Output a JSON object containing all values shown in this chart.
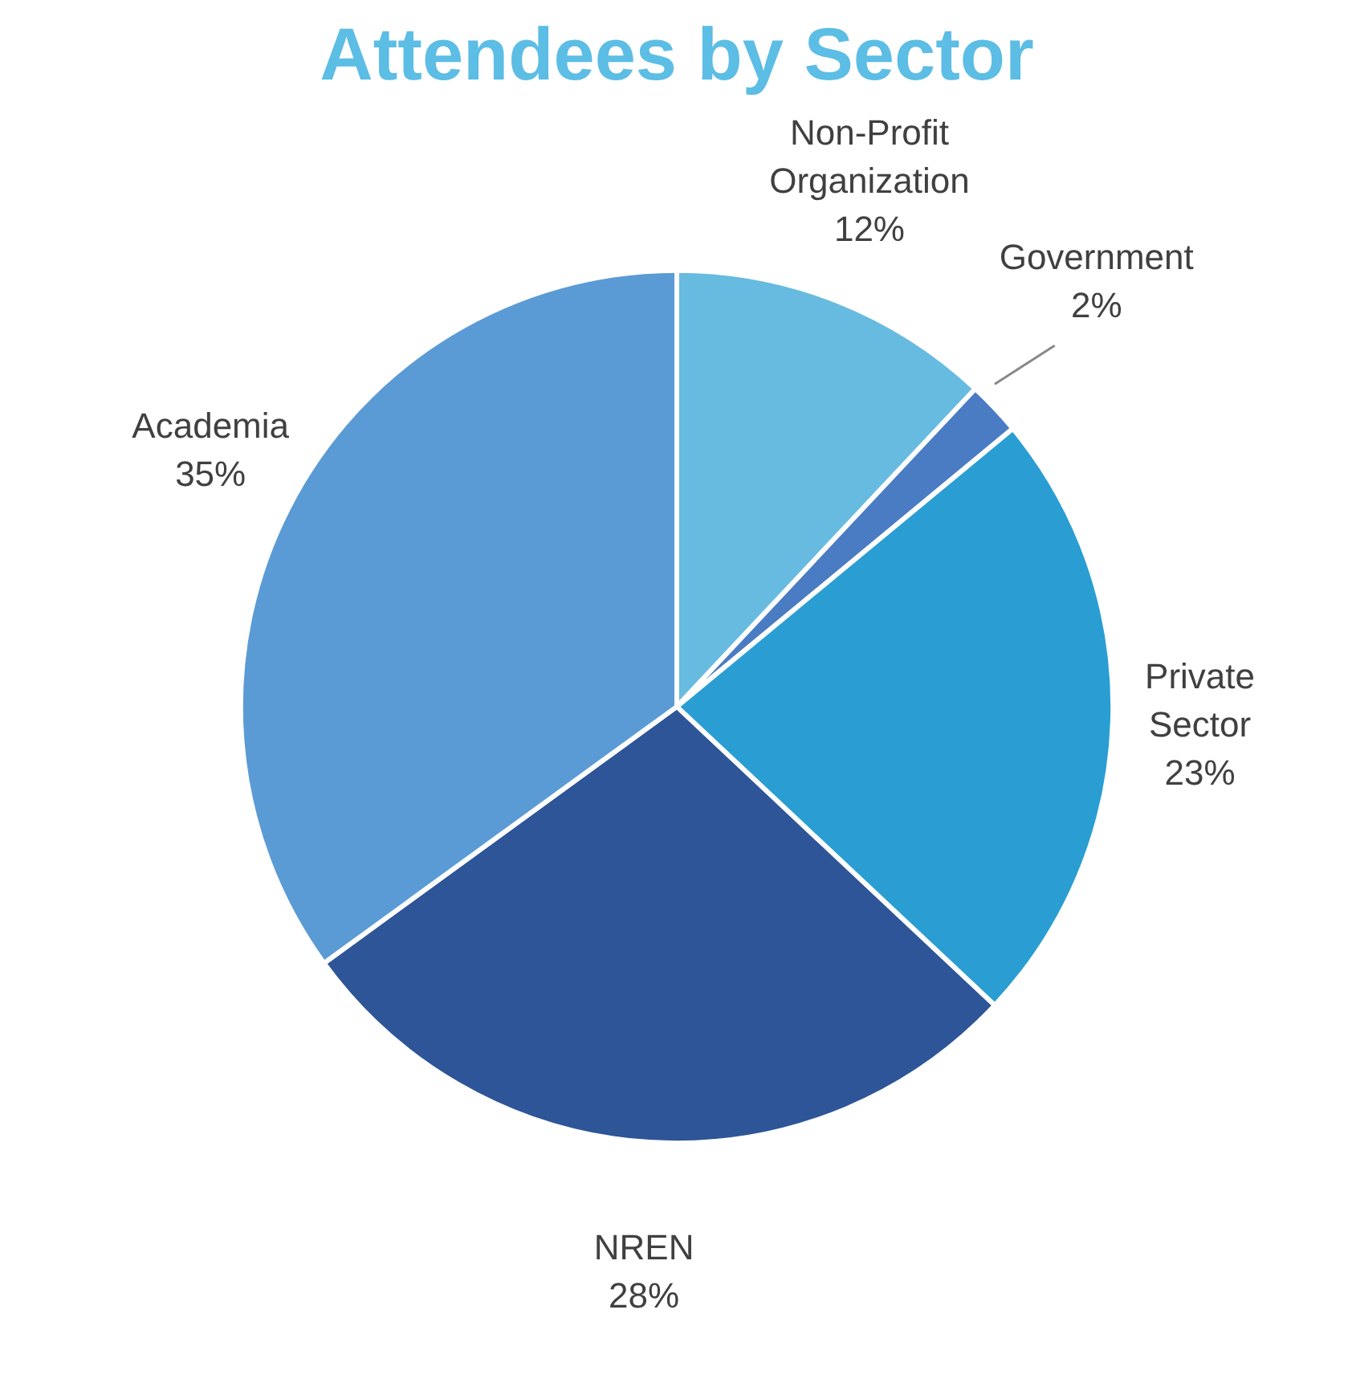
{
  "chart_data": {
    "type": "pie",
    "title": "Attendees by Sector",
    "categories": [
      "Non-Profit Organization",
      "Government",
      "Private Sector",
      "NREN",
      "Academia"
    ],
    "values": [
      12,
      2,
      23,
      28,
      35
    ],
    "colors": [
      "#67bbe0",
      "#4a7cc4",
      "#2a9ed2",
      "#2d5597",
      "#5b9bd5"
    ],
    "value_labels": [
      "12%",
      "2%",
      "23%",
      "28%",
      "35%"
    ]
  }
}
